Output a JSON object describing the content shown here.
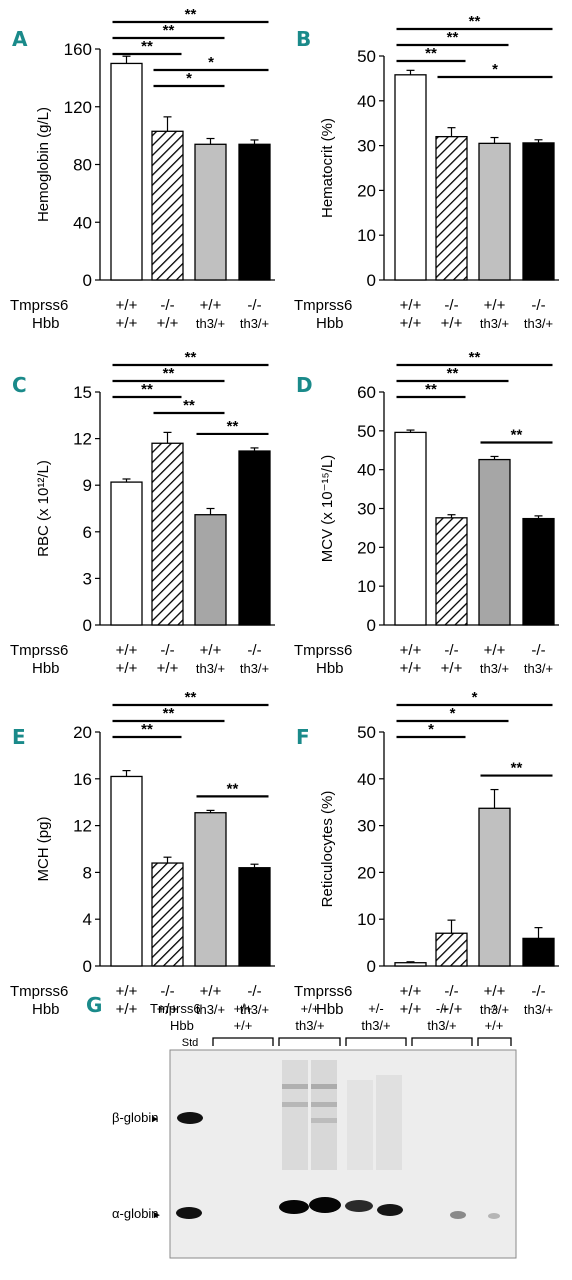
{
  "panel_color": "#1a8a8a",
  "genotype_rows": [
    "Tmprss6",
    "Hbb"
  ],
  "charts": [
    {
      "id": "A",
      "ylabel": "Hemoglobin (g/L)",
      "ylim": [
        0,
        160
      ],
      "yticks": [
        0,
        40,
        80,
        120,
        160
      ],
      "tmprss6": [
        "+/+",
        "-/-",
        "+/+",
        "-/-"
      ],
      "hbb": [
        "+/+",
        "+/+",
        "th3/+",
        "th3/+"
      ]
    },
    {
      "id": "B",
      "ylabel": "Hematocrit (%)",
      "ylim": [
        0,
        50
      ],
      "yticks": [
        0,
        10,
        20,
        30,
        40,
        50
      ],
      "tmprss6": [
        "+/+",
        "-/-",
        "+/+",
        "-/-"
      ],
      "hbb": [
        "+/+",
        "+/+",
        "th3/+",
        "th3/+"
      ]
    },
    {
      "id": "C",
      "ylabel": "RBC (x 10¹²/L)",
      "ylim": [
        0,
        15
      ],
      "yticks": [
        0,
        3,
        6,
        9,
        12,
        15
      ],
      "tmprss6": [
        "+/+",
        "-/-",
        "+/+",
        "-/-"
      ],
      "hbb": [
        "+/+",
        "+/+",
        "th3/+",
        "th3/+"
      ]
    },
    {
      "id": "D",
      "ylabel": "MCV (x 10⁻¹⁵/L)",
      "ylim": [
        0,
        60
      ],
      "yticks": [
        0,
        10,
        20,
        30,
        40,
        50,
        60
      ],
      "tmprss6": [
        "+/+",
        "-/-",
        "+/+",
        "-/-"
      ],
      "hbb": [
        "+/+",
        "+/+",
        "th3/+",
        "th3/+"
      ]
    },
    {
      "id": "E",
      "ylabel": "MCH (pg)",
      "ylim": [
        0,
        20
      ],
      "yticks": [
        0,
        4,
        8,
        12,
        16,
        20
      ],
      "tmprss6": [
        "+/+",
        "-/-",
        "+/+",
        "-/-"
      ],
      "hbb": [
        "+/+",
        "+/+",
        "th3/+",
        "th3/+"
      ]
    },
    {
      "id": "F",
      "ylabel": "Reticulocytes (%)",
      "ylim": [
        0,
        50
      ],
      "yticks": [
        0,
        10,
        20,
        30,
        40,
        50
      ],
      "tmprss6": [
        "+/+",
        "-/-",
        "+/+",
        "-/-"
      ],
      "hbb": [
        "+/+",
        "+/+",
        "th3/+",
        "th3/+"
      ]
    }
  ],
  "chart_data": [
    {
      "type": "bar",
      "panel": "A",
      "ylabel": "Hemoglobin (g/L)",
      "ylim": [
        0,
        160
      ],
      "categories": [
        "+/+ / +/+",
        "-/- / +/+",
        "+/+ / th3/+",
        "-/- / th3/+"
      ],
      "values": [
        150,
        103,
        94,
        94
      ],
      "errors": [
        5,
        10,
        4,
        3
      ],
      "fills": [
        "white",
        "hatch",
        "#c0c0c0",
        "#000000"
      ],
      "significance": [
        {
          "from": 0,
          "to": 1,
          "label": "**"
        },
        {
          "from": 0,
          "to": 2,
          "label": "**"
        },
        {
          "from": 0,
          "to": 3,
          "label": "**"
        },
        {
          "from": 1,
          "to": 2,
          "label": "*"
        },
        {
          "from": 1,
          "to": 3,
          "label": "*"
        }
      ]
    },
    {
      "type": "bar",
      "panel": "B",
      "ylabel": "Hematocrit (%)",
      "ylim": [
        0,
        50
      ],
      "categories": [
        "+/+ / +/+",
        "-/- / +/+",
        "+/+ / th3/+",
        "-/- / th3/+"
      ],
      "values": [
        45.8,
        32,
        30.5,
        30.6
      ],
      "errors": [
        1,
        2,
        1.3,
        0.7
      ],
      "fills": [
        "white",
        "hatch",
        "#c0c0c0",
        "#000000"
      ],
      "significance": [
        {
          "from": 0,
          "to": 1,
          "label": "**"
        },
        {
          "from": 0,
          "to": 2,
          "label": "**"
        },
        {
          "from": 0,
          "to": 3,
          "label": "**"
        },
        {
          "from": 1,
          "to": 3,
          "label": "*"
        }
      ]
    },
    {
      "type": "bar",
      "panel": "C",
      "ylabel": "RBC (x 10¹²/L)",
      "ylim": [
        0,
        15
      ],
      "categories": [
        "+/+ / +/+",
        "-/- / +/+",
        "+/+ / th3/+",
        "-/- / th3/+"
      ],
      "values": [
        9.2,
        11.7,
        7.1,
        11.2
      ],
      "errors": [
        0.2,
        0.7,
        0.4,
        0.2
      ],
      "fills": [
        "white",
        "hatch",
        "#a6a6a6",
        "#000000"
      ],
      "significance": [
        {
          "from": 0,
          "to": 1,
          "label": "**"
        },
        {
          "from": 0,
          "to": 2,
          "label": "**"
        },
        {
          "from": 0,
          "to": 3,
          "label": "**"
        },
        {
          "from": 1,
          "to": 2,
          "label": "**"
        },
        {
          "from": 2,
          "to": 3,
          "label": "**"
        }
      ]
    },
    {
      "type": "bar",
      "panel": "D",
      "ylabel": "MCV (x 10⁻¹⁵/L)",
      "ylim": [
        0,
        60
      ],
      "categories": [
        "+/+ / +/+",
        "-/- / +/+",
        "+/+ / th3/+",
        "-/- / th3/+"
      ],
      "values": [
        49.6,
        27.6,
        42.6,
        27.4
      ],
      "errors": [
        0.6,
        0.8,
        0.8,
        0.7
      ],
      "fills": [
        "white",
        "hatch",
        "#a6a6a6",
        "#000000"
      ],
      "significance": [
        {
          "from": 0,
          "to": 1,
          "label": "**"
        },
        {
          "from": 0,
          "to": 2,
          "label": "**"
        },
        {
          "from": 0,
          "to": 3,
          "label": "**"
        },
        {
          "from": 2,
          "to": 3,
          "label": "**"
        }
      ]
    },
    {
      "type": "bar",
      "panel": "E",
      "ylabel": "MCH (pg)",
      "ylim": [
        0,
        20
      ],
      "categories": [
        "+/+ / +/+",
        "-/- / +/+",
        "+/+ / th3/+",
        "-/- / th3/+"
      ],
      "values": [
        16.2,
        8.8,
        13.1,
        8.4
      ],
      "errors": [
        0.5,
        0.5,
        0.2,
        0.3
      ],
      "fills": [
        "white",
        "hatch",
        "#c0c0c0",
        "#000000"
      ],
      "significance": [
        {
          "from": 0,
          "to": 1,
          "label": "**"
        },
        {
          "from": 0,
          "to": 2,
          "label": "**"
        },
        {
          "from": 0,
          "to": 3,
          "label": "**"
        },
        {
          "from": 2,
          "to": 3,
          "label": "**"
        }
      ]
    },
    {
      "type": "bar",
      "panel": "F",
      "ylabel": "Reticulocytes (%)",
      "ylim": [
        0,
        50
      ],
      "categories": [
        "+/+ / +/+",
        "-/- / +/+",
        "+/+ / th3/+",
        "-/- / th3/+"
      ],
      "values": [
        0.7,
        7,
        33.7,
        5.9
      ],
      "errors": [
        0.2,
        2.8,
        4,
        2.3
      ],
      "fills": [
        "white",
        "hatch",
        "#c0c0c0",
        "#000000"
      ],
      "significance": [
        {
          "from": 0,
          "to": 1,
          "label": "*"
        },
        {
          "from": 0,
          "to": 2,
          "label": "*"
        },
        {
          "from": 0,
          "to": 3,
          "label": "*"
        },
        {
          "from": 2,
          "to": 3,
          "label": "**"
        }
      ]
    }
  ],
  "panel_g": {
    "letter": "G",
    "row_labels": [
      "Tmprss6",
      "Hbb"
    ],
    "lane_groups": [
      {
        "tmprss6": "+/+",
        "hbb": "+/+"
      },
      {
        "tmprss6": "+/+",
        "hbb": "th3/+"
      },
      {
        "tmprss6": "+/-",
        "hbb": "th3/+"
      },
      {
        "tmprss6": "-/-",
        "hbb": "th3/+"
      },
      {
        "tmprss6": "-/-",
        "hbb": "+/+"
      }
    ],
    "std_label": "Std",
    "band_labels": [
      "β-globin",
      "α-globin"
    ],
    "arrow": "►"
  }
}
